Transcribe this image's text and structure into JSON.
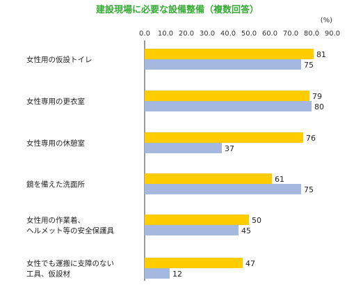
{
  "chart_data": {
    "type": "bar",
    "orientation": "horizontal",
    "title": "建設現場に必要な設備整備（複数回答）",
    "unit": "(%)",
    "xlim": [
      0,
      90
    ],
    "ticks": [
      "0.0",
      "10.0",
      "20.0",
      "30.0",
      "40.0",
      "50.0",
      "60.0",
      "70.0",
      "80.0",
      "90.0"
    ],
    "categories": [
      [
        "女性用の仮設トイレ"
      ],
      [
        "女性専用の更衣室"
      ],
      [
        "女性専用の休憩室"
      ],
      [
        "鏡を備えた洗面所"
      ],
      [
        "女性用の作業着、",
        "ヘルメット等の安全保護具"
      ],
      [
        "女性でも運搬に支障のない",
        "工具、仮設材"
      ]
    ],
    "series": [
      {
        "values": [
          81,
          79,
          76,
          61,
          50,
          47
        ],
        "color": "#ffcc00"
      },
      {
        "values": [
          75,
          80,
          37,
          75,
          45,
          12
        ],
        "color": "#a4b8e0"
      }
    ],
    "title_color": "#33aa33",
    "grid": false,
    "legend": "none"
  }
}
